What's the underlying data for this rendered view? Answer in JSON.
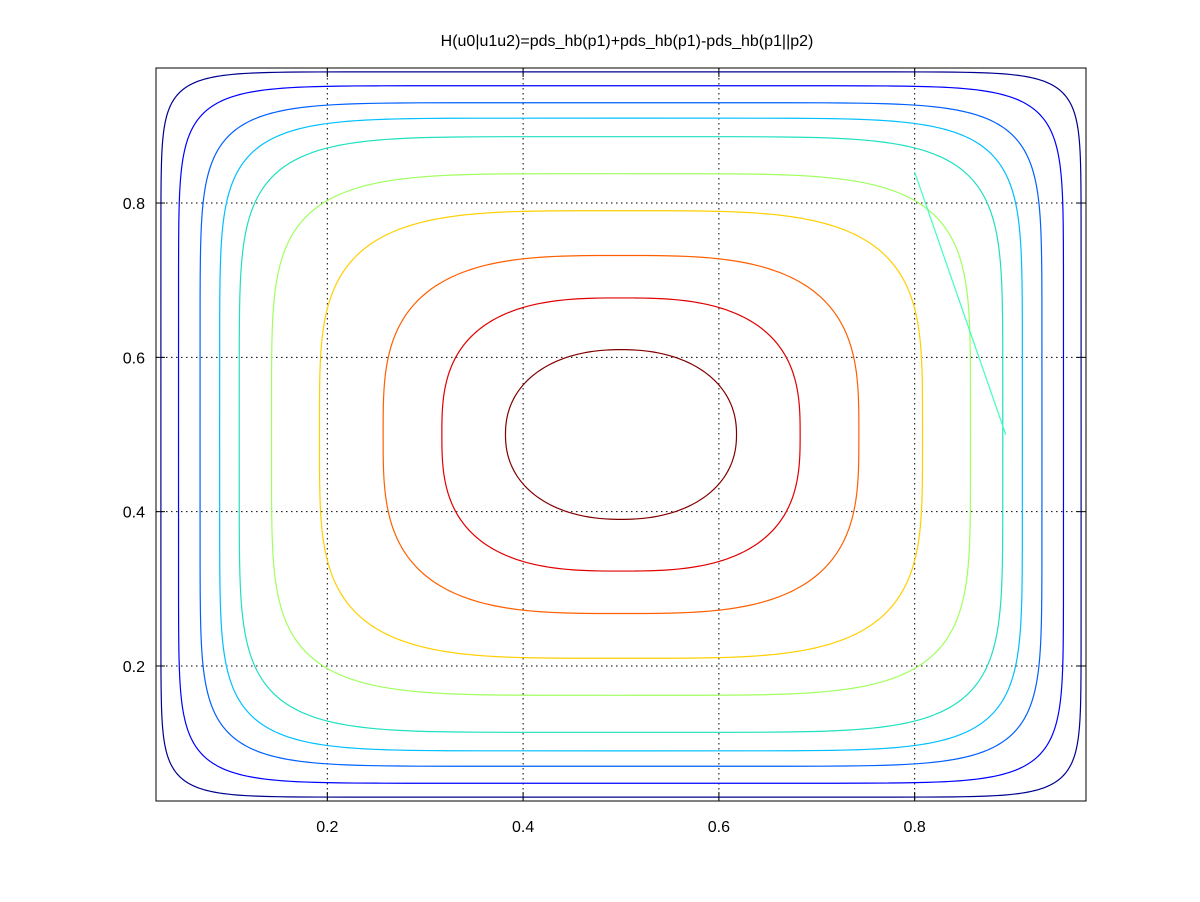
{
  "chart_data": {
    "type": "contour",
    "title": "H(u0|u1u2)=pds_hb(p1)+pds_hb(p1)-pds_hb(p1||p2)",
    "xlabel": "",
    "ylabel": "",
    "xlim": [
      0.025,
      0.975
    ],
    "ylim": [
      0.025,
      0.975
    ],
    "grid": true,
    "x_ticks": [
      0.2,
      0.4,
      0.6,
      0.8
    ],
    "y_ticks": [
      0.2,
      0.4,
      0.6,
      0.8
    ],
    "x_tick_labels": [
      "0.2",
      "0.4",
      "0.6",
      "0.8"
    ],
    "y_tick_labels": [
      "0.2",
      "0.4",
      "0.6",
      "0.8"
    ],
    "levels": [
      {
        "half_width_x": 0.47,
        "half_width_y": 0.47,
        "exponent": 14,
        "color": "#00008f"
      },
      {
        "half_width_x": 0.452,
        "half_width_y": 0.452,
        "exponent": 10,
        "color": "#0000ff"
      },
      {
        "half_width_x": 0.43,
        "half_width_y": 0.43,
        "exponent": 8,
        "color": "#0060ff"
      },
      {
        "half_width_x": 0.41,
        "half_width_y": 0.41,
        "exponent": 7,
        "color": "#00bfff"
      },
      {
        "half_width_x": 0.39,
        "half_width_y": 0.386,
        "exponent": 6,
        "color": "#1fe0c0"
      },
      {
        "half_width_x": 0.357,
        "half_width_y": 0.338,
        "exponent": 5,
        "color": "#a0ff5f"
      },
      {
        "half_width_x": 0.308,
        "half_width_y": 0.29,
        "exponent": 4,
        "color": "#ffcf00"
      },
      {
        "half_width_x": 0.243,
        "half_width_y": 0.232,
        "exponent": 3.2,
        "color": "#ff5f00"
      },
      {
        "half_width_x": 0.183,
        "half_width_y": 0.177,
        "exponent": 2.8,
        "color": "#e00000"
      },
      {
        "half_width_x": 0.118,
        "half_width_y": 0.11,
        "exponent": 2.2,
        "color": "#800000"
      }
    ],
    "stray_segment": {
      "points": [
        [
          0.8,
          0.84
        ],
        [
          0.893,
          0.5
        ]
      ],
      "color": "#40ffbf"
    }
  }
}
